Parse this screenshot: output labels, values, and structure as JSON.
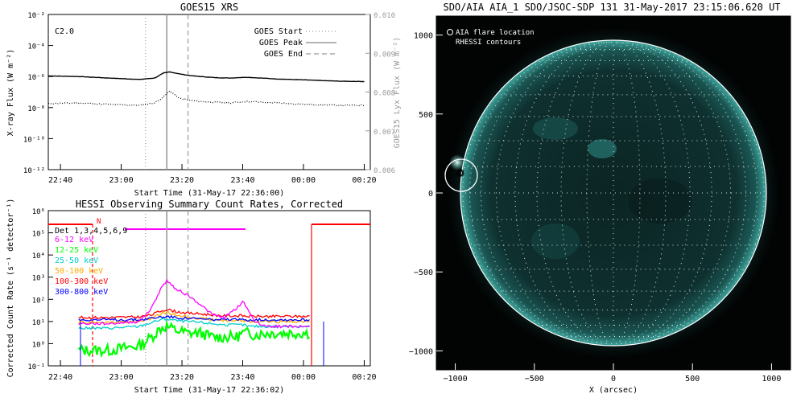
{
  "chart_data": [
    {
      "type": "line",
      "title": "GOES15 XRS",
      "xlabel": "Start Time (31-May-17 22:36:00)",
      "ylabel": "X-ray Flux (W m⁻²)",
      "ylabel_right": "GOES15 Lyx Flux (W m⁻²)",
      "annotation": "C2.0",
      "x_ticks": [
        "22:40",
        "23:00",
        "23:20",
        "23:40",
        "00:00",
        "00:20"
      ],
      "y_ticks": [
        "10⁻²",
        "10⁻⁴",
        "10⁻⁶",
        "10⁻⁸",
        "10⁻¹⁰",
        "10⁻¹²"
      ],
      "y_ticks_right": [
        "0.010",
        "0.009",
        "0.008",
        "0.007",
        "0.006"
      ],
      "ylim": [
        1e-12,
        0.01
      ],
      "ylim_right": [
        0.006,
        0.01
      ],
      "y_scale": "log",
      "x_minutes_since_2236": [
        0,
        10,
        20,
        30,
        35,
        38,
        40,
        43,
        46,
        50,
        55,
        60,
        65,
        70,
        75,
        80,
        85,
        90,
        96,
        104
      ],
      "legend": [
        {
          "label": "GOES Start",
          "style": "dotted"
        },
        {
          "label": "GOES Peak",
          "style": "solid"
        },
        {
          "label": "GOES End",
          "style": "dashed"
        }
      ],
      "markers": {
        "start_min": 32,
        "peak_min": 39,
        "end_min": 46
      },
      "series": [
        {
          "values": [
            1.1e-06,
            1e-06,
            8e-07,
            6.5e-07,
            8e-07,
            1.7e-06,
            2e-06,
            1.5e-06,
            1.2e-06,
            1e-06,
            8.5e-07,
            8e-07,
            9e-07,
            8e-07,
            7e-07,
            6.5e-07,
            6e-07,
            5.5e-07,
            5e-07,
            4.8e-07
          ]
        },
        {
          "values": [
            1.8e-08,
            2e-08,
            1.6e-08,
            1.4e-08,
            2e-08,
            5e-08,
            1.2e-07,
            4e-08,
            3e-08,
            2.5e-08,
            2.2e-08,
            2e-08,
            2.5e-08,
            2.2e-08,
            2e-08,
            1.8e-08,
            1.6e-08,
            1.5e-08,
            1.4e-08,
            1.4e-08
          ]
        }
      ]
    },
    {
      "type": "line",
      "title": "HESSI Observing Summary Count Rates, Corrected",
      "xlabel": "Start Time (31-May-17 22:36:02)",
      "ylabel": "Corrected Count Rate (s⁻¹ detector⁻¹)",
      "x_ticks": [
        "22:40",
        "23:00",
        "23:20",
        "23:40",
        "00:00",
        "00:20"
      ],
      "y_ticks": [
        "10⁶",
        "10⁵",
        "10⁴",
        "10³",
        "10²",
        "10¹",
        "10⁰",
        "10⁻¹"
      ],
      "ylim": [
        0.1,
        1000000.0
      ],
      "y_scale": "log",
      "detectors": "Det 1,3,4,5,6,9",
      "flag_label": "N",
      "markers": {
        "start_min": 32,
        "peak_min": 39,
        "end_min": 46
      },
      "x_minutes_since_2236": [
        10,
        20,
        30,
        34,
        37,
        39,
        42,
        46,
        50,
        54,
        58,
        62,
        64,
        66,
        68,
        72,
        80,
        86
      ],
      "series": [
        {
          "name": "6-12 keV",
          "color": "#ff00ff",
          "values": [
            8,
            8,
            10,
            40,
            300,
            700,
            300,
            150,
            60,
            20,
            15,
            40,
            80,
            30,
            10,
            6,
            6,
            6
          ]
        },
        {
          "name": "12-25 keV",
          "color": "#00ff00",
          "values": [
            0.5,
            0.5,
            0.8,
            2,
            5,
            6,
            4,
            3,
            3,
            2,
            2,
            2,
            3,
            3,
            2.5,
            3,
            3,
            3
          ]
        },
        {
          "name": "25-50 keV",
          "color": "#00cccc",
          "values": [
            5,
            5,
            6,
            9,
            12,
            13,
            11,
            10,
            9,
            8,
            7,
            7,
            7,
            6,
            6,
            6,
            6,
            6
          ]
        },
        {
          "name": "50-100 keV",
          "color": "#ffaa00",
          "values": [
            9,
            9,
            10,
            14,
            22,
            25,
            20,
            16,
            14,
            12,
            11,
            11,
            11,
            10,
            10,
            10,
            10,
            10
          ]
        },
        {
          "name": "100-300 keV",
          "color": "#ff0000",
          "values": [
            15,
            15,
            16,
            20,
            30,
            35,
            28,
            24,
            22,
            20,
            18,
            18,
            18,
            17,
            17,
            17,
            17,
            17
          ]
        },
        {
          "name": "300-800 keV",
          "color": "#0000ff",
          "values": [
            12,
            12,
            12,
            14,
            16,
            17,
            15,
            14,
            13,
            12,
            12,
            12,
            12,
            12,
            12,
            12,
            12,
            12
          ]
        }
      ]
    },
    {
      "type": "heatmap",
      "title": "SDO/AIA AIA_1 SDO/JSOC-SDP 131 31-May-2017 23:15:06.620 UT",
      "xlabel": "X (arcsec)",
      "ylabel": "",
      "x_ticks": [
        "−1000",
        "−500",
        "0",
        "500",
        "1000"
      ],
      "y_ticks": [
        "1000",
        "500",
        "0",
        "−500",
        "−1000"
      ],
      "xlim": [
        -1120,
        1120
      ],
      "ylim": [
        -1120,
        1120
      ],
      "legend": [
        {
          "label": "AIA flare location",
          "symbol": "circle"
        },
        {
          "label": "RHESSI contours"
        }
      ],
      "solar_limb_radius_arcsec": 960,
      "flare_location_arcsec": [
        -945,
        200
      ],
      "grid_spacing_deg": 10,
      "disk_color": "#0c2b2b",
      "limb_glow_color": "#1e6f6a"
    }
  ]
}
